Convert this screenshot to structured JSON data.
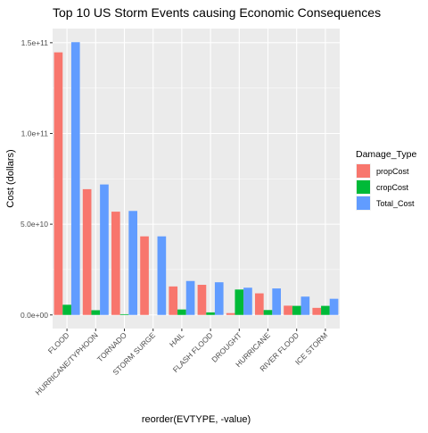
{
  "chart_data": {
    "type": "bar",
    "title": "Top 10 US Storm Events causing Economic Consequences",
    "xlabel": "reorder(EVTYPE, -value)",
    "ylabel": "Cost (dollars)",
    "categories": [
      "FLOOD",
      "HURRICANE/TYPHOON",
      "TORNADO",
      "STORM SURGE",
      "HAIL",
      "FLASH FLOOD",
      "DROUGHT",
      "HURRICANE",
      "RIVER FLOOD",
      "ICE STORM"
    ],
    "series": [
      {
        "name": "propCost",
        "color": "#F8766D",
        "values": [
          144700000000.0,
          69300000000.0,
          56900000000.0,
          43300000000.0,
          15700000000.0,
          16600000000.0,
          1000000000.0,
          11900000000.0,
          5100000000.0,
          3900000000.0
        ]
      },
      {
        "name": "cropCost",
        "color": "#00BA38",
        "values": [
          5600000000.0,
          2600000000.0,
          400000000.0,
          0,
          3000000000.0,
          1400000000.0,
          14000000000.0,
          2700000000.0,
          5000000000.0,
          5000000000.0
        ]
      },
      {
        "name": "Total_Cost",
        "color": "#619CFF",
        "values": [
          150300000000.0,
          71900000000.0,
          57300000000.0,
          43300000000.0,
          18700000000.0,
          18000000000.0,
          15000000000.0,
          14600000000.0,
          10100000000.0,
          8900000000.0
        ]
      }
    ],
    "yticks": [
      0,
      50000000000.0,
      100000000000.0,
      150000000000.0
    ],
    "ytick_labels": [
      "0.0e+00",
      "5.0e+10",
      "1.0e+11",
      "1.5e+11"
    ],
    "ylim": [
      -7500000000.0,
      157800000000.0
    ],
    "legend_title": "Damage_Type",
    "legend_position": "right",
    "grid": true
  }
}
